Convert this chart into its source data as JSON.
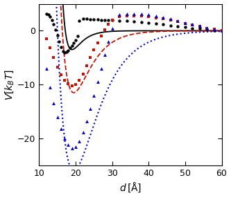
{
  "xlim": [
    10,
    60
  ],
  "ylim": [
    -25,
    5
  ],
  "xlabel": "d [\\u00c5]",
  "ylabel": "V[k_BT]",
  "yticks": [
    -20,
    -10,
    0
  ],
  "xticks": [
    10,
    20,
    30,
    40,
    50,
    60
  ],
  "black_dots_x": [
    12.0,
    12.5,
    13.0,
    13.5,
    14.0,
    14.5,
    15.0,
    15.5,
    16.0,
    16.5,
    17.0,
    17.5,
    18.0,
    18.5,
    19.0,
    19.5,
    20.0,
    20.5,
    21.0,
    22.0,
    23.0,
    24.0,
    25.0,
    26.0,
    27.0,
    28.0,
    29.0,
    30.0,
    32.0,
    34.0,
    36.0,
    38.0,
    40.0,
    42.0,
    44.0,
    46.0,
    48.0,
    50.0,
    52.0,
    54.0,
    56.0,
    58.0,
    60.0
  ],
  "black_dots_y": [
    3.2,
    3.0,
    2.6,
    2.0,
    1.2,
    0.2,
    -0.8,
    -2.0,
    -3.0,
    -3.8,
    -4.0,
    -3.9,
    -3.7,
    -3.2,
    -2.8,
    -2.2,
    -1.8,
    -1.0,
    1.8,
    2.2,
    2.2,
    2.1,
    2.1,
    2.1,
    2.0,
    2.0,
    2.0,
    2.0,
    1.9,
    1.8,
    1.7,
    1.6,
    1.5,
    1.3,
    1.2,
    1.0,
    0.8,
    0.7,
    0.5,
    0.4,
    0.3,
    0.1,
    0.0
  ],
  "red_sq_x": [
    12.0,
    13.0,
    14.0,
    15.0,
    16.0,
    17.0,
    18.0,
    19.0,
    20.0,
    21.0,
    22.0,
    23.0,
    24.0,
    25.0,
    26.0,
    27.0,
    28.0,
    29.0,
    30.0,
    32.0,
    34.0,
    36.0,
    38.0,
    40.0,
    42.0,
    44.0,
    46.0,
    48.0,
    50.0,
    52.0,
    54.0,
    56.0,
    58.0,
    60.0
  ],
  "red_sq_y": [
    -1.5,
    -3.2,
    -5.0,
    -6.8,
    -8.2,
    -9.2,
    -9.8,
    -10.2,
    -10.0,
    -9.2,
    -8.0,
    -6.5,
    -5.0,
    -3.5,
    -2.2,
    -1.0,
    0.2,
    1.2,
    2.0,
    2.6,
    2.8,
    2.8,
    2.7,
    2.6,
    2.4,
    2.2,
    2.0,
    1.7,
    1.4,
    1.1,
    0.8,
    0.5,
    0.3,
    0.1
  ],
  "blue_tri_x": [
    12.0,
    13.0,
    14.0,
    15.0,
    16.0,
    17.0,
    18.0,
    19.0,
    20.0,
    21.0,
    22.0,
    23.0,
    24.0,
    25.0,
    26.0,
    27.0,
    28.0,
    29.0,
    30.0,
    32.0,
    34.0,
    36.0,
    38.0,
    40.0,
    42.0,
    44.0,
    46.0,
    48.0,
    50.0,
    52.0,
    54.0,
    56.0,
    58.0,
    60.0
  ],
  "blue_tri_y": [
    -7.0,
    -10.5,
    -13.5,
    -16.0,
    -18.2,
    -20.0,
    -21.2,
    -21.8,
    -21.5,
    -20.5,
    -18.8,
    -16.8,
    -14.5,
    -12.0,
    -9.5,
    -7.0,
    -4.5,
    -2.0,
    0.5,
    3.0,
    3.2,
    3.2,
    3.1,
    3.0,
    2.8,
    2.5,
    2.2,
    1.9,
    1.5,
    1.2,
    0.9,
    0.6,
    0.3,
    0.1
  ],
  "colors": {
    "black": "#000000",
    "red": "#cc1100",
    "blue": "#0000cc"
  },
  "line_black": {
    "x0": 19.0,
    "D": 3.5,
    "a": 0.38,
    "x_start": 16.5
  },
  "line_red": {
    "x0": 19.5,
    "D": 11.5,
    "a": 0.22,
    "x_start": 13.0
  },
  "line_blue": {
    "x0": 19.5,
    "D": 26.0,
    "a": 0.155,
    "x_start": 10.0
  }
}
